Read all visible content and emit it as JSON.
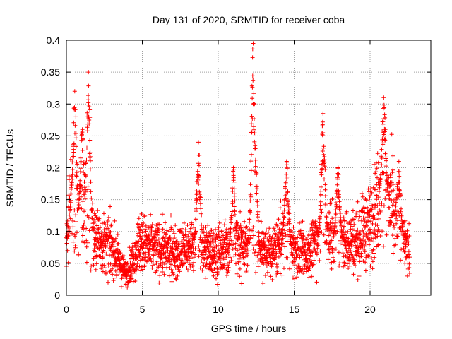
{
  "chart_data": {
    "type": "scatter",
    "title": "Day 131 of 2020, SRMTID for receiver coba",
    "xlabel": "GPS time / hours",
    "ylabel": "SRMTID / TECUs",
    "xlim": [
      0,
      24
    ],
    "ylim": [
      0,
      0.4
    ],
    "xticks": [
      0,
      5,
      10,
      15,
      20
    ],
    "yticks": [
      0,
      0.05,
      0.1,
      0.15,
      0.2,
      0.25,
      0.3,
      0.35,
      0.4
    ],
    "grid": true,
    "marker": "plus",
    "color": "#ff0000",
    "sampling": {
      "x_start": 0,
      "x_end": 22.6,
      "step_hours": 0.0167,
      "tracks_per_step": 2
    },
    "envelope": [
      {
        "x": 0.0,
        "y": 0.09
      },
      {
        "x": 0.3,
        "y": 0.14
      },
      {
        "x": 0.6,
        "y": 0.12
      },
      {
        "x": 1.0,
        "y": 0.13
      },
      {
        "x": 1.4,
        "y": 0.11
      },
      {
        "x": 2.0,
        "y": 0.09
      },
      {
        "x": 2.5,
        "y": 0.08
      },
      {
        "x": 3.0,
        "y": 0.075
      },
      {
        "x": 3.5,
        "y": 0.05
      },
      {
        "x": 3.9,
        "y": 0.035
      },
      {
        "x": 4.3,
        "y": 0.05
      },
      {
        "x": 4.8,
        "y": 0.085
      },
      {
        "x": 5.5,
        "y": 0.075
      },
      {
        "x": 6.5,
        "y": 0.07
      },
      {
        "x": 7.5,
        "y": 0.07
      },
      {
        "x": 8.5,
        "y": 0.08
      },
      {
        "x": 9.5,
        "y": 0.07
      },
      {
        "x": 10.5,
        "y": 0.07
      },
      {
        "x": 11.5,
        "y": 0.085
      },
      {
        "x": 12.5,
        "y": 0.075
      },
      {
        "x": 13.5,
        "y": 0.065
      },
      {
        "x": 14.3,
        "y": 0.09
      },
      {
        "x": 15.0,
        "y": 0.07
      },
      {
        "x": 15.8,
        "y": 0.065
      },
      {
        "x": 16.5,
        "y": 0.09
      },
      {
        "x": 17.2,
        "y": 0.1
      },
      {
        "x": 18.0,
        "y": 0.085
      },
      {
        "x": 19.0,
        "y": 0.085
      },
      {
        "x": 20.0,
        "y": 0.11
      },
      {
        "x": 20.6,
        "y": 0.16
      },
      {
        "x": 21.0,
        "y": 0.17
      },
      {
        "x": 21.5,
        "y": 0.13
      },
      {
        "x": 22.0,
        "y": 0.1
      },
      {
        "x": 22.6,
        "y": 0.06
      }
    ],
    "spikes": [
      {
        "x": 0.55,
        "y": 0.32
      },
      {
        "x": 1.05,
        "y": 0.26
      },
      {
        "x": 1.45,
        "y": 0.35
      },
      {
        "x": 8.7,
        "y": 0.24
      },
      {
        "x": 11.0,
        "y": 0.2
      },
      {
        "x": 12.3,
        "y": 0.395
      },
      {
        "x": 12.45,
        "y": 0.23
      },
      {
        "x": 14.5,
        "y": 0.21
      },
      {
        "x": 16.9,
        "y": 0.285
      },
      {
        "x": 17.9,
        "y": 0.2
      },
      {
        "x": 20.9,
        "y": 0.31
      },
      {
        "x": 21.9,
        "y": 0.21
      }
    ]
  }
}
